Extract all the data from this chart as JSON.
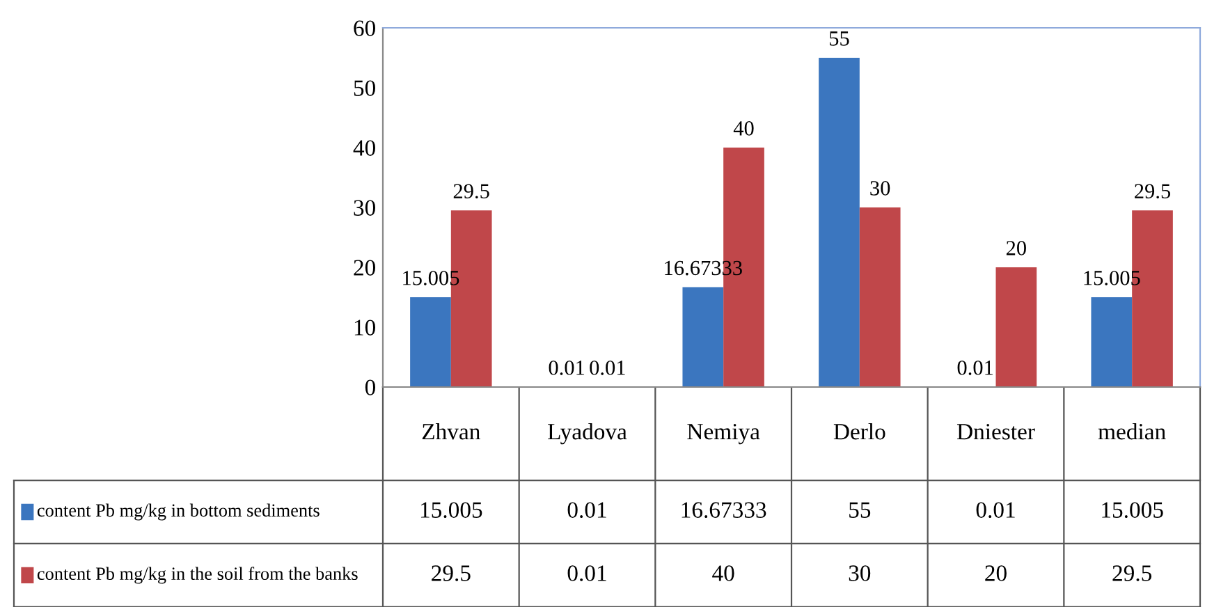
{
  "chart_data": {
    "type": "bar",
    "categories": [
      "Zhvan",
      "Lyadova",
      "Nemiya",
      "Derlo",
      "Dniester",
      "median"
    ],
    "series": [
      {
        "name": "content Pb mg/kg in bottom sediments",
        "color": "#3b76bf",
        "values": [
          15.005,
          0.01,
          16.67333,
          55,
          0.01,
          15.005
        ],
        "value_labels": [
          "15.005",
          "0.01",
          "16.67333",
          "55",
          "0.01",
          "15.005"
        ]
      },
      {
        "name": "content Pb mg/kg in the soil from the banks",
        "color": "#c0474a",
        "values": [
          29.5,
          0.01,
          40,
          30,
          20,
          29.5
        ],
        "value_labels": [
          "29.5",
          "0.01",
          "40",
          "30",
          "20",
          "29.5"
        ]
      }
    ],
    "ylim": [
      0,
      60
    ],
    "yticks": [
      0,
      10,
      20,
      30,
      40,
      50,
      60
    ],
    "grid": false,
    "legend": "bottom"
  }
}
